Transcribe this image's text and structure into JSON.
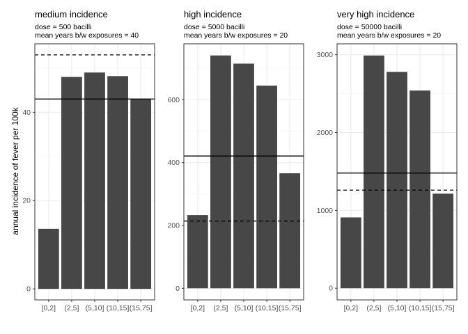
{
  "ylabel": "annual incidence of fever per 100k",
  "colors": {
    "bar": "#474747",
    "grid_major": "#ebebeb",
    "grid_minor": "#f4f4f4",
    "frame": "#333333",
    "reference_line": "#000000"
  },
  "chart_data": [
    {
      "type": "bar",
      "title": "medium incidence",
      "subtitle_lines": [
        "dose = 500 bacilli",
        "mean years b/w exposures = 40"
      ],
      "categories": [
        "[0,2]",
        "(2,5]",
        "(5,10]",
        "(10,15]",
        "(15,75]"
      ],
      "values": [
        13.6,
        48,
        49,
        48.2,
        43
      ],
      "ylim": [
        -2.5,
        55.5
      ],
      "yticks": [
        0,
        20,
        40
      ],
      "hlines": [
        {
          "y": 43,
          "style": "solid"
        },
        {
          "y": 53,
          "style": "dashed"
        }
      ],
      "grid": true
    },
    {
      "type": "bar",
      "title": "high incidence",
      "subtitle_lines": [
        "dose = 5000 bacilli",
        "mean years b/w exposures = 20"
      ],
      "categories": [
        "[0,2]",
        "(2,5]",
        "(5,10]",
        "(10,15]",
        "(15,75]"
      ],
      "values": [
        233,
        741,
        715,
        645,
        366
      ],
      "ylim": [
        -37,
        778
      ],
      "yticks": [
        0,
        200,
        400,
        600
      ],
      "hlines": [
        {
          "y": 421,
          "style": "solid"
        },
        {
          "y": 214,
          "style": "dashed"
        }
      ],
      "grid": true
    },
    {
      "type": "bar",
      "title": "very high incidence",
      "subtitle_lines": [
        "dose = 50000 bacilli",
        "mean years b/w exposures = 20"
      ],
      "categories": [
        "[0,2]",
        "(2,5]",
        "(5,10]",
        "(10,15]",
        "(15,75]"
      ],
      "values": [
        910,
        2990,
        2780,
        2540,
        1215
      ],
      "ylim": [
        -150,
        3140
      ],
      "yticks": [
        0,
        1000,
        2000,
        3000
      ],
      "hlines": [
        {
          "y": 1480,
          "style": "solid"
        },
        {
          "y": 1260,
          "style": "dashed"
        }
      ],
      "grid": true
    }
  ]
}
